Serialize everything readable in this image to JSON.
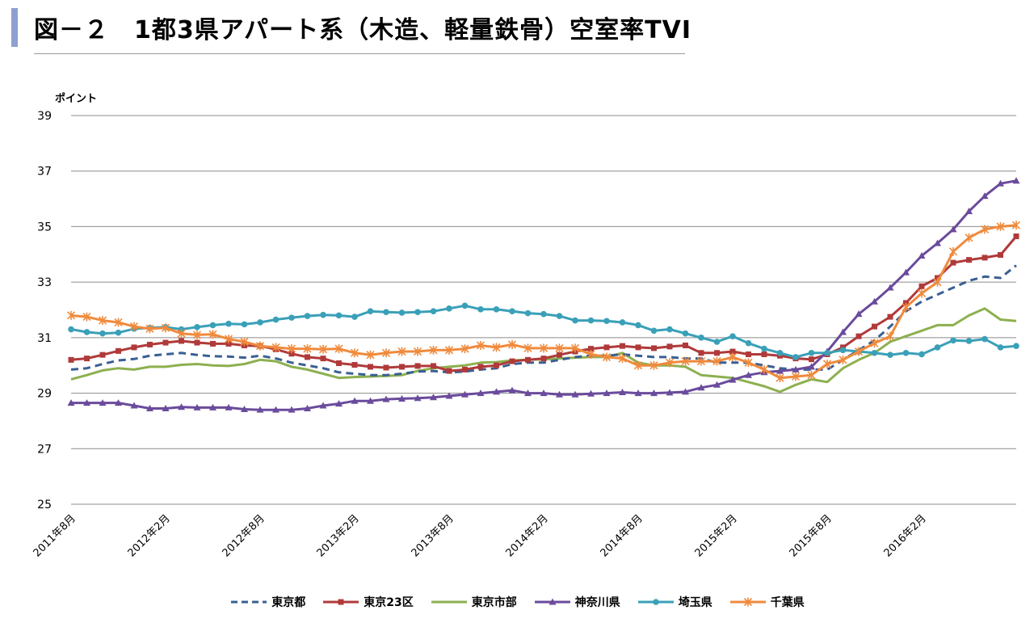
{
  "header": {
    "title": "図－２　1都3県アパート系（木造、軽量鉄骨）空室率TVI"
  },
  "chart_data": {
    "type": "line",
    "title": "図－２　1都3県アパート系（木造、軽量鉄骨）空室率TVI",
    "ylabel": "ポイント",
    "xlabel": "",
    "ylim": [
      25,
      39
    ],
    "yticks": [
      25,
      27,
      29,
      31,
      33,
      35,
      37,
      39
    ],
    "grid": true,
    "legend_position": "bottom",
    "x_tick_labels": [
      {
        "index": 0,
        "label": "2011年8月"
      },
      {
        "index": 6,
        "label": "2012年2月"
      },
      {
        "index": 12,
        "label": "2012年8月"
      },
      {
        "index": 18,
        "label": "2013年2月"
      },
      {
        "index": 24,
        "label": "2013年8月"
      },
      {
        "index": 30,
        "label": "2014年2月"
      },
      {
        "index": 36,
        "label": "2014年8月"
      },
      {
        "index": 42,
        "label": "2015年2月"
      },
      {
        "index": 48,
        "label": "2015年8月"
      },
      {
        "index": 54,
        "label": "2016年2月"
      }
    ],
    "series": [
      {
        "name": "東京都",
        "color": "#3a5f93",
        "marker": "none",
        "dash": true,
        "values": [
          29.85,
          29.9,
          30.05,
          30.18,
          30.23,
          30.35,
          30.4,
          30.45,
          30.38,
          30.33,
          30.32,
          30.28,
          30.35,
          30.25,
          30.1,
          30.0,
          29.9,
          29.75,
          29.7,
          29.65,
          29.65,
          29.7,
          29.78,
          29.8,
          29.75,
          29.78,
          29.85,
          29.9,
          30.05,
          30.1,
          30.1,
          30.2,
          30.3,
          30.35,
          30.35,
          30.4,
          30.35,
          30.3,
          30.3,
          30.25,
          30.25,
          30.1,
          30.1,
          30.1,
          30.0,
          29.9,
          29.85,
          29.85,
          29.85,
          30.2,
          30.55,
          30.9,
          31.4,
          31.95,
          32.3,
          32.55,
          32.8,
          33.05,
          33.2,
          33.15,
          33.6
        ]
      },
      {
        "name": "東京23区",
        "color": "#b03a3a",
        "marker": "square",
        "values": [
          30.2,
          30.25,
          30.38,
          30.52,
          30.65,
          30.75,
          30.82,
          30.88,
          30.82,
          30.78,
          30.78,
          30.72,
          30.7,
          30.58,
          30.42,
          30.3,
          30.25,
          30.08,
          30.02,
          29.95,
          29.92,
          29.95,
          29.98,
          29.98,
          29.8,
          29.85,
          29.95,
          30.0,
          30.15,
          30.2,
          30.25,
          30.38,
          30.5,
          30.6,
          30.65,
          30.7,
          30.65,
          30.62,
          30.68,
          30.72,
          30.45,
          30.45,
          30.5,
          30.4,
          30.4,
          30.35,
          30.25,
          30.22,
          30.4,
          30.65,
          31.05,
          31.4,
          31.75,
          32.25,
          32.85,
          33.15,
          33.7,
          33.8,
          33.88,
          33.98,
          34.65
        ]
      },
      {
        "name": "東京市部",
        "color": "#8db050",
        "marker": "none",
        "values": [
          29.5,
          29.65,
          29.82,
          29.9,
          29.85,
          29.95,
          29.95,
          30.02,
          30.05,
          30.0,
          29.98,
          30.05,
          30.2,
          30.15,
          29.95,
          29.85,
          29.7,
          29.55,
          29.58,
          29.6,
          29.62,
          29.65,
          29.8,
          29.9,
          29.95,
          30.0,
          30.1,
          30.12,
          30.18,
          30.2,
          30.22,
          30.25,
          30.28,
          30.3,
          30.3,
          30.45,
          30.1,
          30.0,
          30.0,
          29.95,
          29.65,
          29.6,
          29.55,
          29.4,
          29.25,
          29.05,
          29.3,
          29.5,
          29.4,
          29.9,
          30.2,
          30.45,
          30.85,
          31.05,
          31.25,
          31.45,
          31.45,
          31.8,
          32.05,
          31.65,
          31.6
        ]
      },
      {
        "name": "神奈川県",
        "color": "#6a4b9c",
        "marker": "triangle",
        "values": [
          28.65,
          28.65,
          28.65,
          28.65,
          28.55,
          28.45,
          28.45,
          28.5,
          28.48,
          28.48,
          28.48,
          28.42,
          28.4,
          28.4,
          28.4,
          28.45,
          28.55,
          28.62,
          28.72,
          28.72,
          28.78,
          28.8,
          28.82,
          28.85,
          28.9,
          28.95,
          29.0,
          29.05,
          29.1,
          29.0,
          29.0,
          28.95,
          28.95,
          28.98,
          29.0,
          29.03,
          29.0,
          29.0,
          29.02,
          29.05,
          29.2,
          29.3,
          29.48,
          29.65,
          29.75,
          29.8,
          29.85,
          29.95,
          30.5,
          31.2,
          31.85,
          32.3,
          32.8,
          33.35,
          33.95,
          34.4,
          34.9,
          35.55,
          36.1,
          36.55,
          36.65
        ]
      },
      {
        "name": "埼玉県",
        "color": "#3aa0b8",
        "marker": "circle",
        "values": [
          31.3,
          31.2,
          31.15,
          31.18,
          31.32,
          31.35,
          31.38,
          31.3,
          31.38,
          31.45,
          31.5,
          31.48,
          31.55,
          31.65,
          31.72,
          31.78,
          31.82,
          31.8,
          31.75,
          31.95,
          31.92,
          31.9,
          31.92,
          31.95,
          32.05,
          32.15,
          32.02,
          32.02,
          31.95,
          31.88,
          31.85,
          31.78,
          31.62,
          31.62,
          31.6,
          31.55,
          31.45,
          31.25,
          31.3,
          31.15,
          31.0,
          30.85,
          31.05,
          30.8,
          30.6,
          30.45,
          30.3,
          30.45,
          30.45,
          30.55,
          30.5,
          30.45,
          30.38,
          30.45,
          30.4,
          30.65,
          30.9,
          30.88,
          30.95,
          30.65,
          30.7
        ]
      },
      {
        "name": "千葉県",
        "color": "#f08a3c",
        "marker": "asterisk",
        "values": [
          31.8,
          31.75,
          31.62,
          31.55,
          31.4,
          31.32,
          31.35,
          31.15,
          31.1,
          31.12,
          30.95,
          30.85,
          30.7,
          30.65,
          30.6,
          30.6,
          30.58,
          30.6,
          30.45,
          30.38,
          30.45,
          30.5,
          30.5,
          30.55,
          30.55,
          30.6,
          30.72,
          30.65,
          30.75,
          30.62,
          30.62,
          30.62,
          30.62,
          30.4,
          30.3,
          30.25,
          30.0,
          30.0,
          30.1,
          30.15,
          30.15,
          30.15,
          30.3,
          30.1,
          29.85,
          29.55,
          29.6,
          29.65,
          30.05,
          30.2,
          30.5,
          30.8,
          31.05,
          32.1,
          32.6,
          33.0,
          34.1,
          34.6,
          34.9,
          35.0,
          35.05
        ]
      }
    ]
  }
}
